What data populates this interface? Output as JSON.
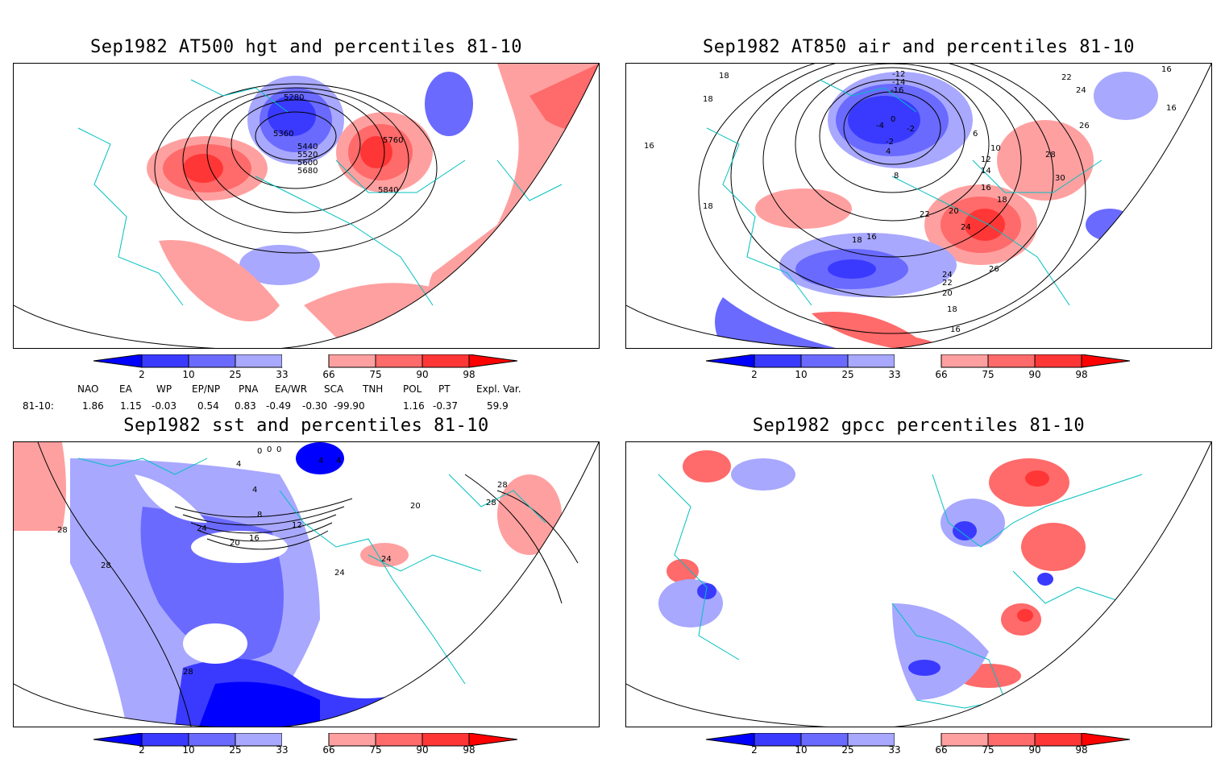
{
  "panels": [
    {
      "title": "Sep1982 AT500 hgt and percentiles 81-10",
      "contour_labels": [
        "5280",
        "5360",
        "5440",
        "5520",
        "5600",
        "5680",
        "5760",
        "5840"
      ]
    },
    {
      "title": "Sep1982 AT850 air and percentiles 81-10",
      "contour_labels": [
        "18",
        "18",
        "16",
        "18",
        "-12",
        "-14",
        "-16",
        "-4",
        "-2",
        "0",
        "-2",
        "4",
        "6",
        "8",
        "10",
        "12",
        "14",
        "16",
        "18",
        "20",
        "22",
        "24",
        "26",
        "28",
        "30",
        "16",
        "16",
        "22",
        "24",
        "26",
        "18",
        "16",
        "22",
        "24",
        "20",
        "18",
        "16"
      ]
    },
    {
      "title": "Sep1982 sst and percentiles 81-10",
      "contour_labels": [
        "4",
        "0",
        "0",
        "0",
        "4",
        "4",
        "4",
        "8",
        "12",
        "16",
        "20",
        "24",
        "24",
        "20",
        "28",
        "28",
        "28",
        "28",
        "28",
        "24"
      ]
    },
    {
      "title": "Sep1982 gpcc percentiles 81-10",
      "contour_labels": []
    }
  ],
  "colorbar": {
    "ticks": [
      "2",
      "10",
      "25",
      "33",
      "66",
      "75",
      "90",
      "98"
    ],
    "colors": {
      "below_2": "#0000ff",
      "2_10": "#3a3aff",
      "10_25": "#6a6aff",
      "25_33": "#a8a8ff",
      "33_66": "#ffffff",
      "66_75": "#ffa0a0",
      "75_90": "#ff6a6a",
      "90_98": "#ff3636",
      "above_98": "#ff0000"
    },
    "coastline_color": "#00c0c0"
  },
  "indices": {
    "headers": [
      "NAO",
      "EA",
      "WP",
      "EP/NP",
      "PNA",
      "EA/WR",
      "SCA",
      "TNH",
      "POL",
      "PT",
      "Expl. Var."
    ],
    "row_label": "81-10:",
    "values": [
      "1.86",
      "1.15",
      "-0.03",
      "0.54",
      "0.83",
      "-0.49",
      "-0.30",
      "-99.90",
      "1.16",
      "-0.37",
      "59.9"
    ]
  }
}
